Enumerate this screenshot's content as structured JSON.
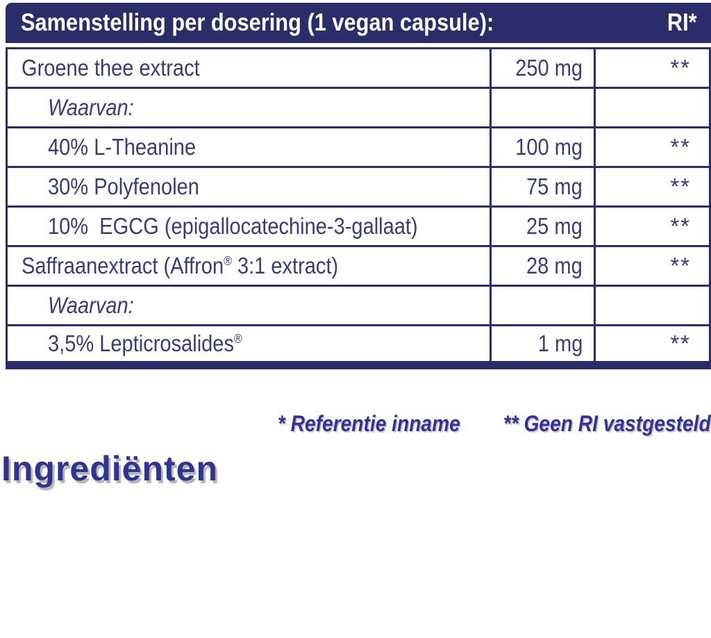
{
  "colors": {
    "navy": "#2B2D6B",
    "row_text": "#3A3C78",
    "accent_blue": "#32329B",
    "heading_blue": "#2F3392",
    "white": "#FFFFFF"
  },
  "table": {
    "header": {
      "title": "Samenstelling per dosering (1 vegan capsule):",
      "ri_label": "RI*"
    },
    "rows": [
      {
        "name_pre": "Groene thee extract",
        "name_sup": "",
        "name_post": "",
        "amount": "250 mg",
        "ri": "**",
        "indent": false,
        "italic": false
      },
      {
        "name_pre": "Waarvan:",
        "name_sup": "",
        "name_post": "",
        "amount": "",
        "ri": "",
        "indent": true,
        "italic": true
      },
      {
        "name_pre": "40% L-Theanine",
        "name_sup": "",
        "name_post": "",
        "amount": "100 mg",
        "ri": "**",
        "indent": true,
        "italic": false
      },
      {
        "name_pre": "30% Polyfenolen",
        "name_sup": "",
        "name_post": "",
        "amount": "75 mg",
        "ri": "**",
        "indent": true,
        "italic": false
      },
      {
        "name_pre": "10%  EGCG (epigallocatechine-3-gallaat)",
        "name_sup": "",
        "name_post": "",
        "amount": "25 mg",
        "ri": "**",
        "indent": true,
        "italic": false
      },
      {
        "name_pre": "Saffraanextract (Affron",
        "name_sup": "®",
        "name_post": " 3:1 extract)",
        "amount": "28 mg",
        "ri": "**",
        "indent": false,
        "italic": false
      },
      {
        "name_pre": "Waarvan:",
        "name_sup": "",
        "name_post": "",
        "amount": "",
        "ri": "",
        "indent": true,
        "italic": true
      },
      {
        "name_pre": "3,5% Lepticrosalides",
        "name_sup": "®",
        "name_post": "",
        "amount": "1 mg",
        "ri": "**",
        "indent": true,
        "italic": false
      }
    ]
  },
  "footnote": {
    "reference_intake": "* Referentie inname",
    "no_ri": "** Geen RI vastgesteld"
  },
  "section_heading": "Ingrediënten"
}
